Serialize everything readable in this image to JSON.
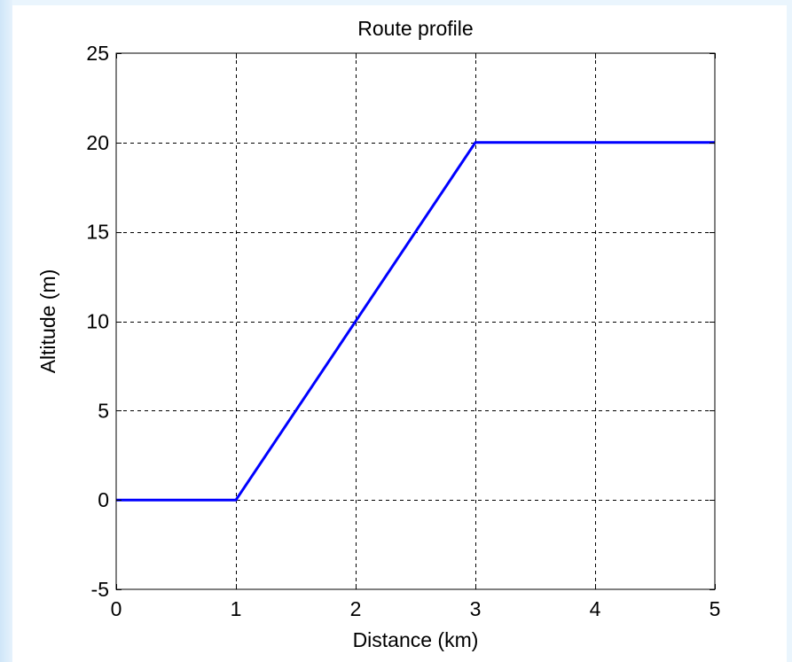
{
  "chart_data": {
    "type": "line",
    "title": "Route profile",
    "xlabel": "Distance (km)",
    "ylabel": "Altitude (m)",
    "xlim": [
      0,
      5
    ],
    "ylim": [
      -5,
      25
    ],
    "xticks": [
      0,
      1,
      2,
      3,
      4,
      5
    ],
    "yticks": [
      -5,
      0,
      5,
      10,
      15,
      20,
      25
    ],
    "xtick_labels": [
      "0",
      "1",
      "2",
      "3",
      "4",
      "5"
    ],
    "ytick_labels": [
      "-5",
      "0",
      "5",
      "10",
      "15",
      "20",
      "25"
    ],
    "grid": true,
    "grid_style": "dashed",
    "series": [
      {
        "x": [
          0,
          1,
          3,
          5
        ],
        "y": [
          0,
          0,
          20,
          20
        ],
        "color": "#0000ff"
      }
    ]
  },
  "colors": {
    "background": "#eaf5fd",
    "canvas": "#ffffff",
    "axes": "#000000",
    "line": "#0000ff"
  }
}
